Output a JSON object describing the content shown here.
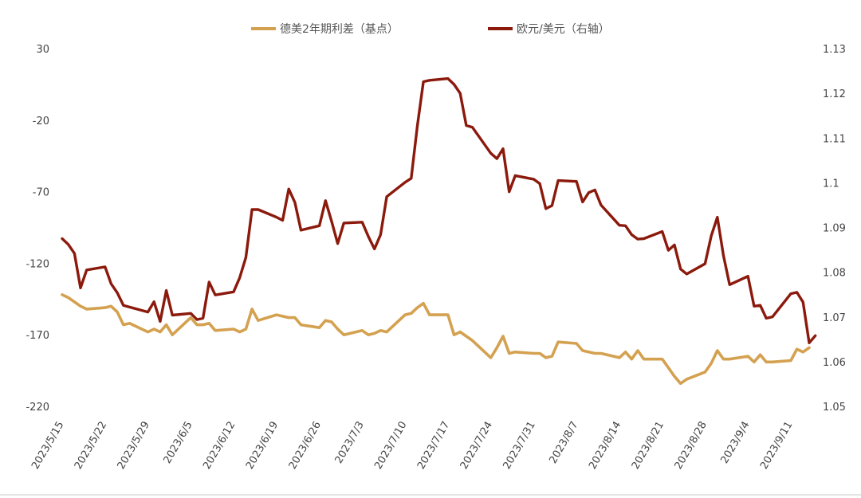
{
  "chart_data": {
    "type": "line",
    "legend": {
      "placement": "top",
      "items": [
        {
          "label": "德美2年期利差（基点）",
          "color": "#d4a150"
        },
        {
          "label": "欧元/美元（右轴）",
          "color": "#8b1a0d"
        }
      ]
    },
    "left_axis": {
      "min": -220,
      "max": 30,
      "ticks": [
        30,
        -20,
        -70,
        -120,
        -170,
        -220
      ],
      "tick_labels": [
        "30",
        "-20",
        "-70",
        "-120",
        "-170",
        "-220"
      ]
    },
    "right_axis": {
      "min": 1.05,
      "max": 1.13,
      "ticks": [
        1.13,
        1.12,
        1.11,
        1.1,
        1.09,
        1.08,
        1.07,
        1.06,
        1.05
      ],
      "tick_labels": [
        "1.13",
        "1.12",
        "1.11",
        "1.1",
        "1.09",
        "1.08",
        "1.07",
        "1.06",
        "1.05"
      ]
    },
    "x_axis": {
      "start_date": "2023-05-15",
      "end_date": "2023-09-14",
      "tick_dates": [
        "2023-05-15",
        "2023-05-22",
        "2023-05-29",
        "2023-06-05",
        "2023-06-12",
        "2023-06-19",
        "2023-06-26",
        "2023-07-03",
        "2023-07-10",
        "2023-07-17",
        "2023-07-24",
        "2023-07-31",
        "2023-08-07",
        "2023-08-14",
        "2023-08-21",
        "2023-08-28",
        "2023-09-04",
        "2023-09-11"
      ],
      "tick_labels": [
        "2023/5/15",
        "2023/5/22",
        "2023/5/29",
        "2023/6/5",
        "2023/6/12",
        "2023/6/19",
        "2023/6/26",
        "2023/7/3",
        "2023/7/10",
        "2023/7/17",
        "2023/7/24",
        "2023/7/31",
        "2023/8/7",
        "2023/8/14",
        "2023/8/21",
        "2023/8/28",
        "2023/9/4",
        "2023/9/11"
      ]
    },
    "series": [
      {
        "name": "德美2年期利差（基点）",
        "axis": "left",
        "color": "#d4a150",
        "points": [
          [
            "2023-05-15",
            -142
          ],
          [
            "2023-05-16",
            -144
          ],
          [
            "2023-05-17",
            -147
          ],
          [
            "2023-05-18",
            -150
          ],
          [
            "2023-05-19",
            -152
          ],
          [
            "2023-05-22",
            -151
          ],
          [
            "2023-05-23",
            -150
          ],
          [
            "2023-05-24",
            -154
          ],
          [
            "2023-05-25",
            -163
          ],
          [
            "2023-05-26",
            -162
          ],
          [
            "2023-05-29",
            -168
          ],
          [
            "2023-05-30",
            -166
          ],
          [
            "2023-05-31",
            -168
          ],
          [
            "2023-06-01",
            -163
          ],
          [
            "2023-06-02",
            -170
          ],
          [
            "2023-06-05",
            -158
          ],
          [
            "2023-06-06",
            -163
          ],
          [
            "2023-06-07",
            -163
          ],
          [
            "2023-06-08",
            -162
          ],
          [
            "2023-06-09",
            -167
          ],
          [
            "2023-06-12",
            -166
          ],
          [
            "2023-06-13",
            -168
          ],
          [
            "2023-06-14",
            -166
          ],
          [
            "2023-06-15",
            -152
          ],
          [
            "2023-06-16",
            -160
          ],
          [
            "2023-06-19",
            -156
          ],
          [
            "2023-06-20",
            -157
          ],
          [
            "2023-06-21",
            -158
          ],
          [
            "2023-06-22",
            -158
          ],
          [
            "2023-06-23",
            -163
          ],
          [
            "2023-06-26",
            -165
          ],
          [
            "2023-06-27",
            -160
          ],
          [
            "2023-06-28",
            -161
          ],
          [
            "2023-06-29",
            -166
          ],
          [
            "2023-06-30",
            -170
          ],
          [
            "2023-07-03",
            -167
          ],
          [
            "2023-07-04",
            -170
          ],
          [
            "2023-07-05",
            -169
          ],
          [
            "2023-07-06",
            -167
          ],
          [
            "2023-07-07",
            -168
          ],
          [
            "2023-07-10",
            -156
          ],
          [
            "2023-07-11",
            -155
          ],
          [
            "2023-07-12",
            -151
          ],
          [
            "2023-07-13",
            -148
          ],
          [
            "2023-07-14",
            -156
          ],
          [
            "2023-07-17",
            -156
          ],
          [
            "2023-07-18",
            -170
          ],
          [
            "2023-07-19",
            -168
          ],
          [
            "2023-07-20",
            -171
          ],
          [
            "2023-07-21",
            -174
          ],
          [
            "2023-07-24",
            -186
          ],
          [
            "2023-07-25",
            -179
          ],
          [
            "2023-07-26",
            -171
          ],
          [
            "2023-07-27",
            -183
          ],
          [
            "2023-07-28",
            -182
          ],
          [
            "2023-07-31",
            -183
          ],
          [
            "2023-08-01",
            -183
          ],
          [
            "2023-08-02",
            -186
          ],
          [
            "2023-08-03",
            -185
          ],
          [
            "2023-08-04",
            -175
          ],
          [
            "2023-08-07",
            -176
          ],
          [
            "2023-08-08",
            -181
          ],
          [
            "2023-08-09",
            -182
          ],
          [
            "2023-08-10",
            -183
          ],
          [
            "2023-08-11",
            -183
          ],
          [
            "2023-08-14",
            -186
          ],
          [
            "2023-08-15",
            -182
          ],
          [
            "2023-08-16",
            -187
          ],
          [
            "2023-08-17",
            -181
          ],
          [
            "2023-08-18",
            -187
          ],
          [
            "2023-08-21",
            -187
          ],
          [
            "2023-08-22",
            -193
          ],
          [
            "2023-08-23",
            -199
          ],
          [
            "2023-08-24",
            -204
          ],
          [
            "2023-08-25",
            -201
          ],
          [
            "2023-08-28",
            -196
          ],
          [
            "2023-08-29",
            -190
          ],
          [
            "2023-08-30",
            -181
          ],
          [
            "2023-08-31",
            -187
          ],
          [
            "2023-09-01",
            -187
          ],
          [
            "2023-09-04",
            -185
          ],
          [
            "2023-09-05",
            -189
          ],
          [
            "2023-09-06",
            -184
          ],
          [
            "2023-09-07",
            -189
          ],
          [
            "2023-09-08",
            -189
          ],
          [
            "2023-09-11",
            -188
          ],
          [
            "2023-09-12",
            -180
          ],
          [
            "2023-09-13",
            -182
          ],
          [
            "2023-09-14",
            -179
          ]
        ]
      },
      {
        "name": "欧元/美元（右轴）",
        "axis": "right",
        "color": "#8b1a0d",
        "points": [
          [
            "2023-05-15",
            1.0875
          ],
          [
            "2023-05-16",
            1.0862
          ],
          [
            "2023-05-17",
            1.0842
          ],
          [
            "2023-05-18",
            1.0765
          ],
          [
            "2023-05-19",
            1.0805
          ],
          [
            "2023-05-22",
            1.0812
          ],
          [
            "2023-05-23",
            1.0774
          ],
          [
            "2023-05-24",
            1.0754
          ],
          [
            "2023-05-25",
            1.0726
          ],
          [
            "2023-05-26",
            1.0722
          ],
          [
            "2023-05-29",
            1.0711
          ],
          [
            "2023-05-30",
            1.0734
          ],
          [
            "2023-05-31",
            1.069
          ],
          [
            "2023-06-01",
            1.0759
          ],
          [
            "2023-06-02",
            1.0704
          ],
          [
            "2023-06-05",
            1.0708
          ],
          [
            "2023-06-06",
            1.0694
          ],
          [
            "2023-06-07",
            1.0697
          ],
          [
            "2023-06-08",
            1.0778
          ],
          [
            "2023-06-09",
            1.0749
          ],
          [
            "2023-06-12",
            1.0756
          ],
          [
            "2023-06-13",
            1.0788
          ],
          [
            "2023-06-14",
            1.0833
          ],
          [
            "2023-06-15",
            1.094
          ],
          [
            "2023-06-16",
            1.094
          ],
          [
            "2023-06-19",
            1.0923
          ],
          [
            "2023-06-20",
            1.0916
          ],
          [
            "2023-06-21",
            1.0986
          ],
          [
            "2023-06-22",
            1.0956
          ],
          [
            "2023-06-23",
            1.0894
          ],
          [
            "2023-06-26",
            1.0904
          ],
          [
            "2023-06-27",
            1.096
          ],
          [
            "2023-06-28",
            1.0914
          ],
          [
            "2023-06-29",
            1.0864
          ],
          [
            "2023-06-30",
            1.091
          ],
          [
            "2023-07-03",
            1.0912
          ],
          [
            "2023-07-04",
            1.088
          ],
          [
            "2023-07-05",
            1.0852
          ],
          [
            "2023-07-06",
            1.0884
          ],
          [
            "2023-07-07",
            1.0969
          ],
          [
            "2023-07-10",
            1.1001
          ],
          [
            "2023-07-11",
            1.101
          ],
          [
            "2023-07-12",
            1.1127
          ],
          [
            "2023-07-13",
            1.1226
          ],
          [
            "2023-07-14",
            1.1229
          ],
          [
            "2023-07-17",
            1.1233
          ],
          [
            "2023-07-18",
            1.122
          ],
          [
            "2023-07-19",
            1.12
          ],
          [
            "2023-07-20",
            1.1128
          ],
          [
            "2023-07-21",
            1.1124
          ],
          [
            "2023-07-24",
            1.1066
          ],
          [
            "2023-07-25",
            1.1054
          ],
          [
            "2023-07-26",
            1.1076
          ],
          [
            "2023-07-27",
            1.098
          ],
          [
            "2023-07-28",
            1.1016
          ],
          [
            "2023-07-31",
            1.1008
          ],
          [
            "2023-08-01",
            1.0998
          ],
          [
            "2023-08-02",
            1.0942
          ],
          [
            "2023-08-03",
            1.0949
          ],
          [
            "2023-08-04",
            1.1005
          ],
          [
            "2023-08-07",
            1.1003
          ],
          [
            "2023-08-08",
            1.0957
          ],
          [
            "2023-08-09",
            1.0978
          ],
          [
            "2023-08-10",
            1.0984
          ],
          [
            "2023-08-11",
            1.095
          ],
          [
            "2023-08-14",
            1.0905
          ],
          [
            "2023-08-15",
            1.0904
          ],
          [
            "2023-08-16",
            1.0884
          ],
          [
            "2023-08-17",
            1.0874
          ],
          [
            "2023-08-18",
            1.0875
          ],
          [
            "2023-08-21",
            1.0891
          ],
          [
            "2023-08-22",
            1.0849
          ],
          [
            "2023-08-23",
            1.0861
          ],
          [
            "2023-08-24",
            1.0807
          ],
          [
            "2023-08-25",
            1.0796
          ],
          [
            "2023-08-28",
            1.0819
          ],
          [
            "2023-08-29",
            1.0881
          ],
          [
            "2023-08-30",
            1.0923
          ],
          [
            "2023-08-31",
            1.0837
          ],
          [
            "2023-09-01",
            1.0772
          ],
          [
            "2023-09-04",
            1.0791
          ],
          [
            "2023-09-05",
            1.0724
          ],
          [
            "2023-09-06",
            1.0726
          ],
          [
            "2023-09-07",
            1.0697
          ],
          [
            "2023-09-08",
            1.07
          ],
          [
            "2023-09-11",
            1.0752
          ],
          [
            "2023-09-12",
            1.0755
          ],
          [
            "2023-09-13",
            1.0733
          ],
          [
            "2023-09-14",
            1.0642
          ],
          [
            "2023-09-15",
            1.0658
          ]
        ]
      }
    ]
  }
}
